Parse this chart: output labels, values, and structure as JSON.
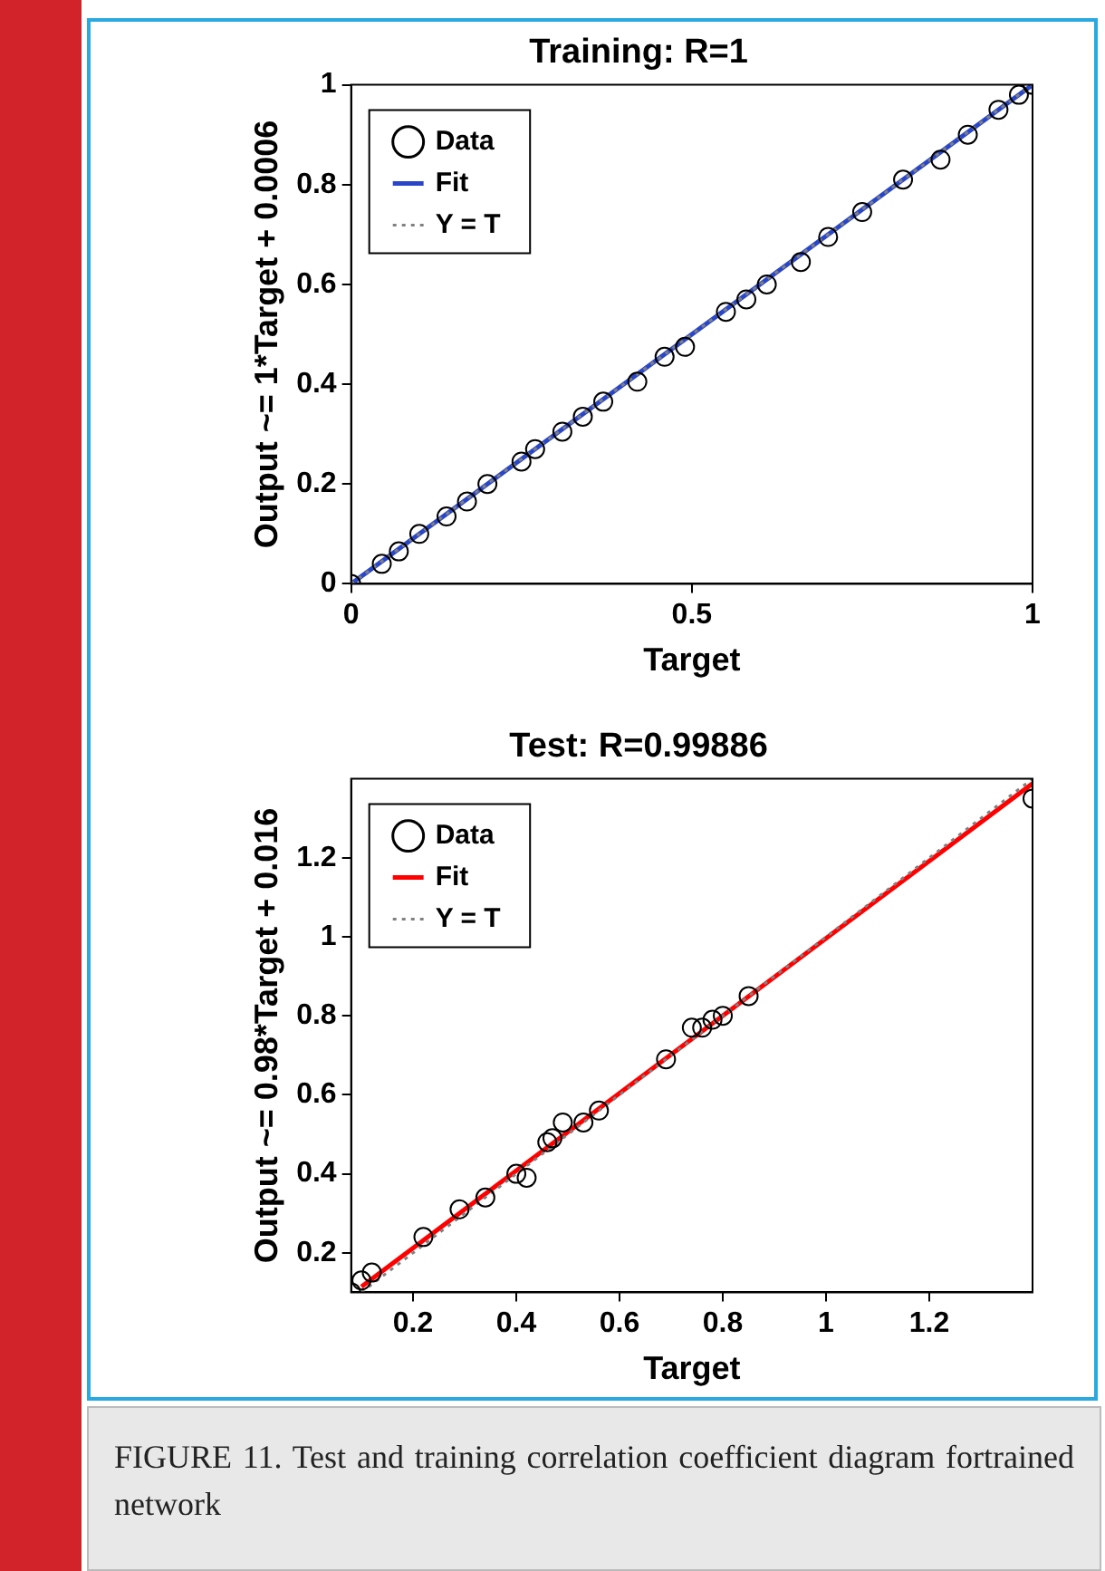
{
  "chart_data": [
    {
      "type": "scatter",
      "title": "Training: R=1",
      "xlabel": "Target",
      "ylabel": "Output ~= 1*Target + 0.0006",
      "xlim": [
        0,
        1
      ],
      "ylim": [
        0,
        1
      ],
      "xticks": [
        0,
        0.5,
        1
      ],
      "yticks": [
        0,
        0.2,
        0.4,
        0.6,
        0.8,
        1
      ],
      "legend": "top left",
      "series": [
        {
          "name": "Data",
          "type": "scatter",
          "marker": "circle",
          "color": "#000000",
          "x": [
            0,
            0.045,
            0.07,
            0.1,
            0.14,
            0.17,
            0.2,
            0.25,
            0.27,
            0.31,
            0.34,
            0.37,
            0.42,
            0.46,
            0.49,
            0.55,
            0.58,
            0.61,
            0.66,
            0.7,
            0.75,
            0.81,
            0.865,
            0.905,
            0.95,
            0.98,
            1
          ],
          "values": [
            0,
            0.04,
            0.065,
            0.1,
            0.135,
            0.165,
            0.2,
            0.245,
            0.27,
            0.305,
            0.335,
            0.365,
            0.405,
            0.455,
            0.475,
            0.545,
            0.57,
            0.6,
            0.645,
            0.695,
            0.745,
            0.81,
            0.85,
            0.9,
            0.95,
            0.98,
            1
          ]
        },
        {
          "name": "Fit",
          "type": "line",
          "color": "#2a46c8",
          "x": [
            0,
            1
          ],
          "values": [
            0,
            1
          ]
        },
        {
          "name": "Y = T",
          "type": "line",
          "line_style": "dotted",
          "color": "#808080",
          "x": [
            0,
            1
          ],
          "values": [
            0,
            1
          ]
        }
      ]
    },
    {
      "type": "scatter",
      "title": "Test: R=0.99886",
      "xlabel": "Target",
      "ylabel": "Output ~= 0.98*Target + 0.016",
      "xlim": [
        0.08,
        1.4
      ],
      "ylim": [
        0.1,
        1.4
      ],
      "xticks": [
        0.2,
        0.4,
        0.6,
        0.8,
        1,
        1.2
      ],
      "yticks": [
        0.2,
        0.4,
        0.6,
        0.8,
        1,
        1.2
      ],
      "legend": "top left",
      "annotations": [
        "FIGURE 11. Test and training correlation coefficient diagram fortrained network"
      ],
      "series": [
        {
          "name": "Data",
          "type": "scatter",
          "marker": "circle",
          "color": "#000000",
          "x": [
            0.08,
            0.1,
            0.12,
            0.22,
            0.29,
            0.34,
            0.4,
            0.42,
            0.46,
            0.47,
            0.49,
            0.53,
            0.56,
            0.69,
            0.74,
            0.76,
            0.78,
            0.8,
            0.85,
            1.4
          ],
          "values": [
            0.1,
            0.13,
            0.15,
            0.24,
            0.31,
            0.34,
            0.4,
            0.39,
            0.48,
            0.49,
            0.53,
            0.53,
            0.56,
            0.69,
            0.77,
            0.77,
            0.79,
            0.8,
            0.85,
            1.35
          ]
        },
        {
          "name": "Fit",
          "type": "line",
          "color": "#ff0000",
          "x": [
            0.1,
            1.4
          ],
          "values": [
            0.114,
            1.388
          ]
        },
        {
          "name": "Y = T",
          "type": "line",
          "line_style": "dotted",
          "color": "#808080",
          "x": [
            0.1,
            1.4
          ],
          "values": [
            0.1,
            1.4
          ]
        }
      ]
    }
  ]
}
